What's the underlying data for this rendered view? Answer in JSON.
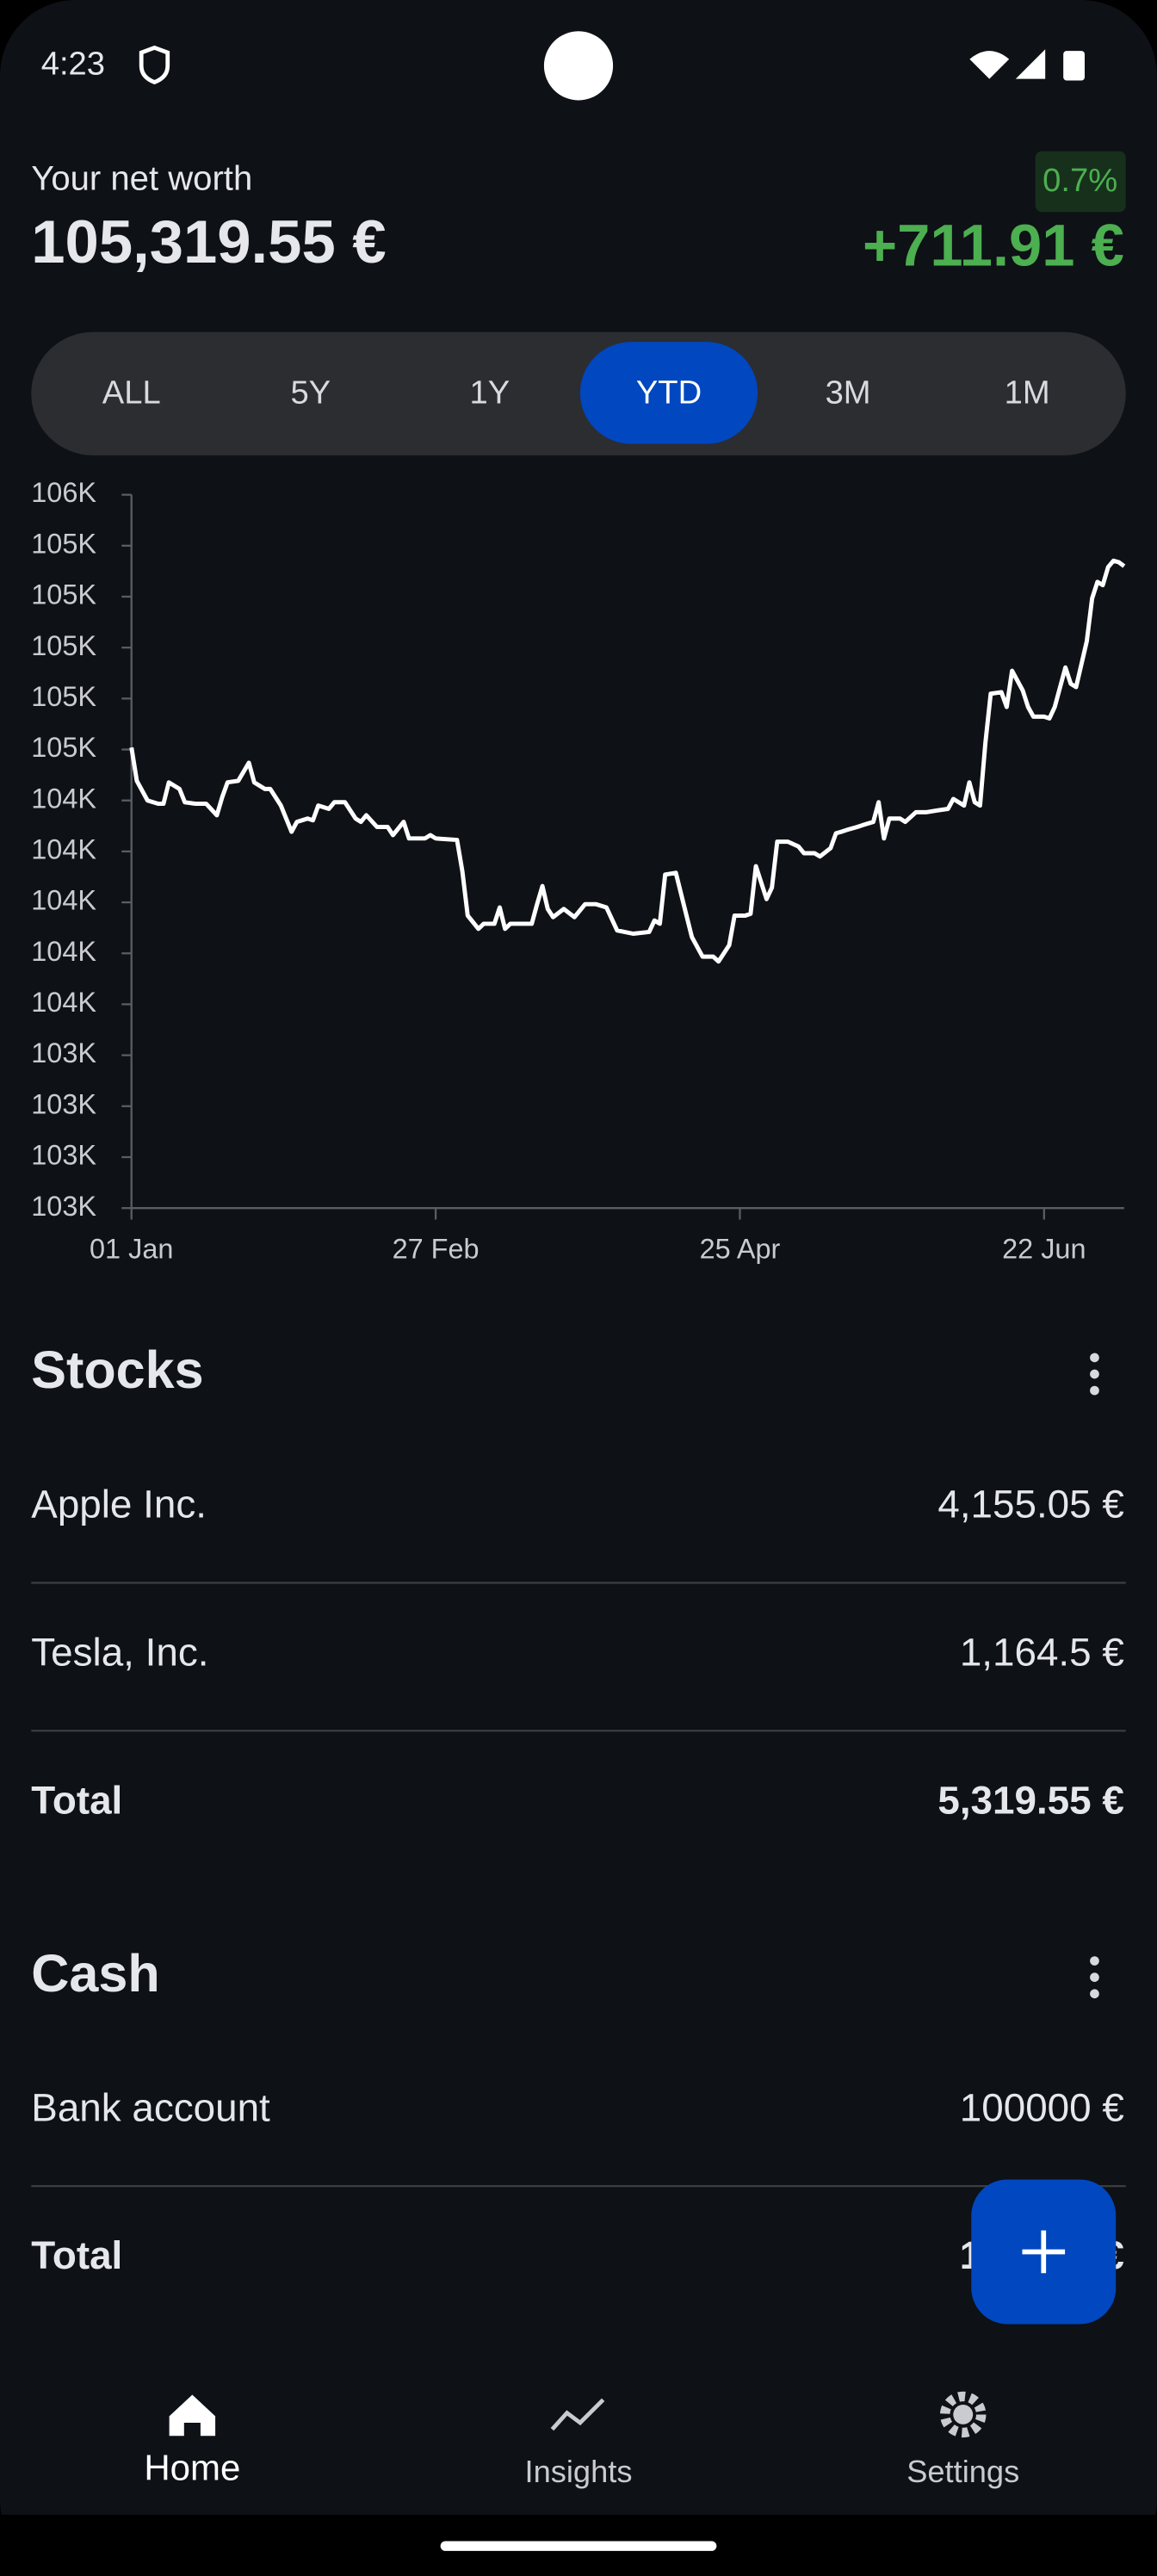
{
  "status_bar": {
    "time": "4:23"
  },
  "header": {
    "label": "Your net worth",
    "net_worth": "105,319.55 €",
    "change_percent": "0.7%",
    "change": "+711.91 €"
  },
  "ranges": {
    "options": [
      "ALL",
      "5Y",
      "1Y",
      "YTD",
      "3M",
      "1M"
    ],
    "selected": 3
  },
  "chart_data": {
    "type": "line",
    "x": [
      0,
      1,
      3,
      5,
      6,
      7,
      9,
      10,
      12,
      14,
      16,
      17,
      18,
      20,
      22,
      23,
      25,
      26,
      28,
      30,
      31,
      33,
      34,
      35,
      37,
      38,
      40,
      42,
      43,
      44,
      46,
      48,
      49,
      51,
      52,
      55,
      56,
      57,
      61,
      62,
      63,
      65,
      66,
      68,
      69,
      70,
      71,
      75,
      76,
      77,
      78,
      79,
      81,
      83,
      85,
      87,
      89,
      91,
      94,
      97,
      98,
      99,
      100,
      102,
      104,
      105,
      107,
      109,
      110,
      112,
      113,
      115,
      116,
      117,
      119,
      120,
      121,
      123,
      125,
      126,
      128,
      129,
      131,
      132,
      133,
      134,
      136,
      137,
      139,
      140,
      141,
      142,
      144,
      145,
      147,
      149,
      151,
      153,
      154,
      156,
      157,
      158,
      159,
      160,
      161,
      163,
      164,
      165,
      167,
      168,
      169,
      171,
      172,
      173,
      175,
      176,
      177,
      179,
      180,
      181,
      182,
      183,
      184,
      185,
      186
    ],
    "series": [
      {
        "color": "#ffffff",
        "values": [
          104607.64,
          104477,
          104400,
          104387,
          104387,
          104471,
          104445,
          104393,
          104387,
          104387,
          104342,
          104413,
          104471,
          104477,
          104548,
          104471,
          104445,
          104445,
          104380,
          104277,
          104316,
          104329,
          104322,
          104380,
          104367,
          104393,
          104393,
          104329,
          104316,
          104342,
          104296,
          104296,
          104264,
          104316,
          104251,
          104251,
          104264,
          104251,
          104245,
          104122,
          103948,
          103896,
          103916,
          103916,
          103980,
          103896,
          103916,
          103916,
          103993,
          104064,
          103974,
          103942,
          103974,
          103942,
          103993,
          103993,
          103980,
          103890,
          103877,
          103884,
          103929,
          103916,
          104109,
          104116,
          103948,
          103864,
          103787,
          103787,
          103768,
          103832,
          103948,
          103948,
          103955,
          104142,
          104013,
          104058,
          104238,
          104238,
          104219,
          104193,
          104193,
          104180,
          104213,
          104271,
          104277,
          104284,
          104296,
          104303,
          104316,
          104393,
          104251,
          104329,
          104329,
          104316,
          104354,
          104354,
          104361,
          104367,
          104406,
          104380,
          104471,
          104393,
          104380,
          104625,
          104819,
          104825,
          104767,
          104909,
          104832,
          104767,
          104729,
          104729,
          104722,
          104767,
          104922,
          104858,
          104845,
          105025,
          105193,
          105258,
          105245,
          105316,
          105341,
          105335,
          105319.55
        ]
      }
    ],
    "xlim": [
      0,
      186
    ],
    "xticks": [
      {
        "value": 0,
        "label": "01 Jan"
      },
      {
        "value": 57,
        "label": "27 Feb"
      },
      {
        "value": 114,
        "label": "25 Apr"
      },
      {
        "value": 171,
        "label": "22 Jun"
      }
    ],
    "ylim": [
      102800,
      105600
    ],
    "yticks": [
      {
        "value": 102800,
        "label": "103K"
      },
      {
        "value": 103000,
        "label": "103K"
      },
      {
        "value": 103200,
        "label": "103K"
      },
      {
        "value": 103400,
        "label": "103K"
      },
      {
        "value": 103600,
        "label": "104K"
      },
      {
        "value": 103800,
        "label": "104K"
      },
      {
        "value": 104000,
        "label": "104K"
      },
      {
        "value": 104200,
        "label": "104K"
      },
      {
        "value": 104400,
        "label": "104K"
      },
      {
        "value": 104600,
        "label": "105K"
      },
      {
        "value": 104800,
        "label": "105K"
      },
      {
        "value": 105000,
        "label": "105K"
      },
      {
        "value": 105200,
        "label": "105K"
      },
      {
        "value": 105400,
        "label": "105K"
      },
      {
        "value": 105600,
        "label": "106K"
      }
    ]
  },
  "sections": [
    {
      "title": "Stocks",
      "rows": [
        {
          "name": "Apple Inc.",
          "value": "4,155.05 €"
        },
        {
          "name": "Tesla, Inc.",
          "value": "1,164.5 €"
        }
      ],
      "total_label": "Total",
      "total": "5,319.55 €"
    },
    {
      "title": "Cash",
      "rows": [
        {
          "name": "Bank account",
          "value": "100000 €"
        }
      ],
      "total_label": "Total",
      "total": "100000 €"
    }
  ],
  "nav": [
    {
      "label": "Home"
    },
    {
      "label": "Insights"
    },
    {
      "label": "Settings"
    }
  ]
}
